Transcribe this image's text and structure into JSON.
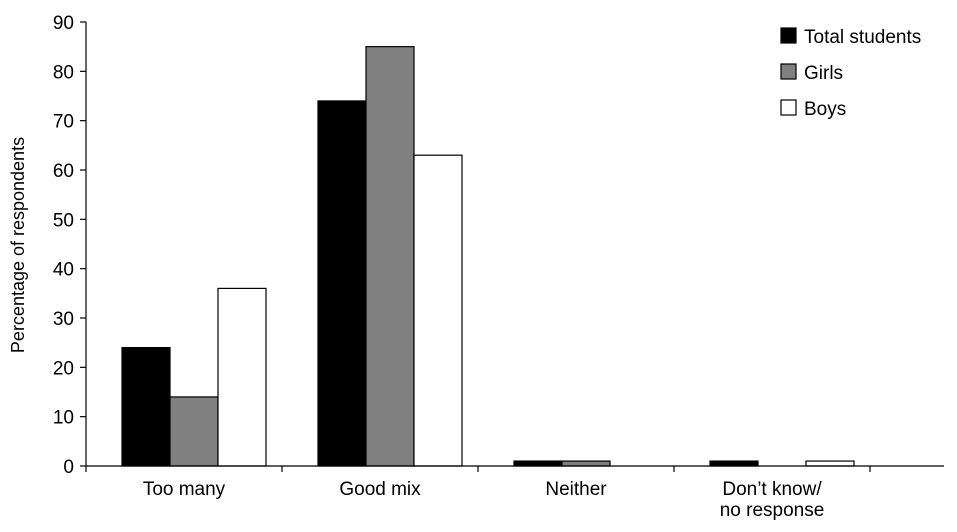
{
  "chart_data": {
    "type": "bar",
    "ylabel": "Percentage of respondents",
    "ylim": [
      0,
      90
    ],
    "yticks": [
      0,
      10,
      20,
      30,
      40,
      50,
      60,
      70,
      80,
      90
    ],
    "grid": false,
    "legend_position": "top-right",
    "categories": [
      [
        "Too many"
      ],
      [
        "Good mix"
      ],
      [
        "Neither"
      ],
      [
        "Don’t know/",
        "no response"
      ]
    ],
    "series": [
      {
        "name": "Total students",
        "color": "#000000",
        "values": [
          24,
          74,
          1,
          1
        ]
      },
      {
        "name": "Girls",
        "color": "#808080",
        "values": [
          14,
          85,
          1,
          0
        ]
      },
      {
        "name": "Boys",
        "color": "#ffffff",
        "values": [
          36,
          63,
          0,
          1
        ]
      }
    ]
  }
}
